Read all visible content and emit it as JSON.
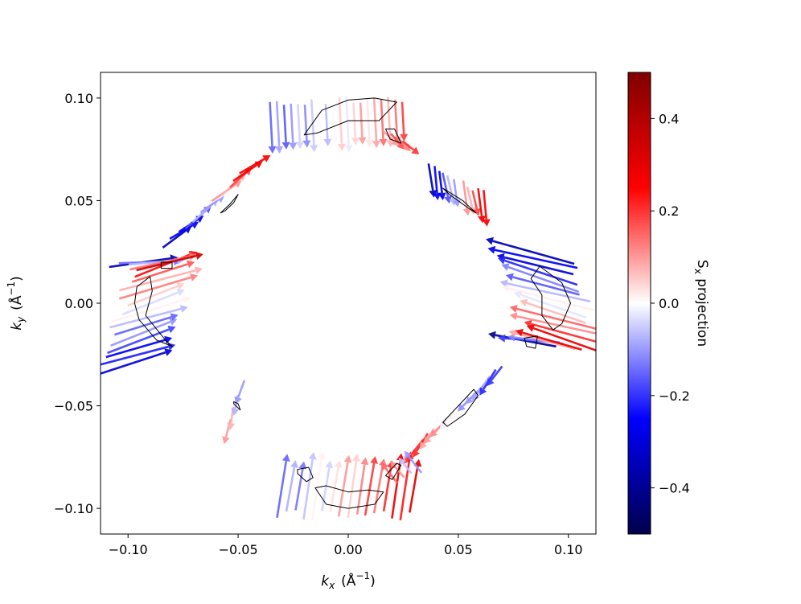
{
  "chart_data": {
    "type": "quiver",
    "title": "",
    "xlabel": {
      "symbol": "k",
      "sub": "x",
      "unit_pre": "(Å",
      "unit_sup": "−1",
      "unit_post": ")"
    },
    "ylabel": {
      "symbol": "k",
      "sub": "y",
      "unit_pre": "(Å",
      "unit_sup": "−1",
      "unit_post": ")"
    },
    "xlim": [
      -0.1125,
      0.1125
    ],
    "ylim": [
      -0.1125,
      0.1125
    ],
    "xticks": [
      -0.1,
      -0.05,
      0.0,
      0.05,
      0.1
    ],
    "xtick_labels": [
      "−0.10",
      "−0.05",
      "0.00",
      "0.05",
      "0.10"
    ],
    "yticks": [
      -0.1,
      -0.05,
      0.0,
      0.05,
      0.1
    ],
    "ytick_labels": [
      "−0.10",
      "−0.05",
      "0.00",
      "0.05",
      "0.10"
    ],
    "grid": false,
    "colorbar": {
      "label": {
        "main": "S",
        "sub": "x",
        "rest": " projection"
      },
      "range": [
        -0.5,
        0.5
      ],
      "ticks": [
        -0.4,
        -0.2,
        0.0,
        0.2,
        0.4
      ],
      "tick_labels": [
        "−0.4",
        "−0.2",
        "0.0",
        "0.2",
        "0.4"
      ],
      "colormap": "seismic",
      "colors": {
        "min": "#00004c",
        "low": "#0000ff",
        "mid": "#ffffff",
        "high": "#ff0000",
        "max": "#800000"
      }
    },
    "arrow_groups": [
      {
        "name": "top",
        "center": [
          -0.005,
          0.087
        ],
        "tangent": [
          1.0,
          0.05
        ],
        "direction": [
          0.05,
          -1.0
        ],
        "length": 0.024,
        "width": 0.06,
        "count": 20,
        "sx": [
          -0.15,
          0.15
        ]
      },
      {
        "name": "top-small",
        "center": [
          0.024,
          0.078
        ],
        "tangent": [
          1.0,
          -0.5
        ],
        "direction": [
          0.7,
          -0.7
        ],
        "length": 0.01,
        "width": 0.01,
        "count": 4,
        "sx": [
          0.1,
          0.2
        ]
      },
      {
        "name": "upper-right",
        "center": [
          0.05,
          0.053
        ],
        "tangent": [
          1.0,
          -0.55
        ],
        "direction": [
          0.15,
          -0.99
        ],
        "length": 0.016,
        "width": 0.028,
        "count": 12,
        "sx": [
          -0.35,
          0.3
        ]
      },
      {
        "name": "right",
        "center": [
          0.09,
          0.004
        ],
        "tangent": [
          0.35,
          -1.0
        ],
        "direction": [
          -1.0,
          0.3
        ],
        "length": 0.04,
        "width": 0.045,
        "count": 14,
        "sx": [
          -0.35,
          0.25
        ]
      },
      {
        "name": "right-lower",
        "center": [
          0.085,
          -0.018
        ],
        "tangent": [
          1.0,
          0.0
        ],
        "direction": [
          -1.0,
          0.2
        ],
        "length": 0.03,
        "width": 0.012,
        "count": 5,
        "sx": [
          -0.4,
          0.25
        ]
      },
      {
        "name": "lower-right",
        "center": [
          0.048,
          -0.054
        ],
        "tangent": [
          1.0,
          1.0
        ],
        "direction": [
          -0.6,
          -0.8
        ],
        "length": 0.014,
        "width": 0.052,
        "count": 13,
        "sx": [
          0.2,
          -0.2
        ]
      },
      {
        "name": "bottom",
        "center": [
          0.0,
          -0.089
        ],
        "tangent": [
          1.0,
          0.0
        ],
        "direction": [
          0.15,
          1.0
        ],
        "length": 0.03,
        "width": 0.06,
        "count": 16,
        "sx": [
          -0.15,
          0.3
        ]
      },
      {
        "name": "bottom-small",
        "center": [
          0.024,
          -0.08
        ],
        "tangent": [
          1.0,
          0.5
        ],
        "direction": [
          -0.6,
          0.8
        ],
        "length": 0.012,
        "width": 0.012,
        "count": 4,
        "sx": [
          0.15,
          -0.1
        ]
      },
      {
        "name": "left",
        "center": [
          -0.09,
          -0.005
        ],
        "tangent": [
          0.3,
          1.0
        ],
        "direction": [
          1.0,
          0.35
        ],
        "length": 0.035,
        "width": 0.05,
        "count": 14,
        "sx": [
          -0.3,
          0.2
        ]
      },
      {
        "name": "left-upper",
        "center": [
          -0.087,
          0.02
        ],
        "tangent": [
          1.0,
          0.0
        ],
        "direction": [
          1.0,
          0.15
        ],
        "length": 0.03,
        "width": 0.012,
        "count": 5,
        "sx": [
          -0.35,
          0.3
        ]
      },
      {
        "name": "upper-left",
        "center": [
          -0.06,
          0.05
        ],
        "tangent": [
          1.0,
          1.0
        ],
        "direction": [
          0.75,
          0.6
        ],
        "length": 0.016,
        "width": 0.05,
        "count": 12,
        "sx": [
          -0.35,
          0.3
        ]
      },
      {
        "name": "lower-left",
        "center": [
          -0.052,
          -0.053
        ],
        "tangent": [
          0.3,
          1.0
        ],
        "direction": [
          -0.25,
          -1.0
        ],
        "length": 0.012,
        "width": 0.02,
        "count": 4,
        "sx": [
          0.1,
          -0.1
        ]
      }
    ],
    "contours": [
      {
        "name": "top",
        "points": [
          [
            -0.02,
            0.082
          ],
          [
            -0.012,
            0.094
          ],
          [
            0.0,
            0.099
          ],
          [
            0.012,
            0.1
          ],
          [
            0.022,
            0.098
          ],
          [
            0.014,
            0.089
          ],
          [
            0.0,
            0.089
          ],
          [
            -0.014,
            0.083
          ],
          [
            -0.02,
            0.082
          ]
        ]
      },
      {
        "name": "top-small",
        "points": [
          [
            0.017,
            0.085
          ],
          [
            0.021,
            0.085
          ],
          [
            0.024,
            0.078
          ],
          [
            0.019,
            0.08
          ],
          [
            0.017,
            0.085
          ]
        ]
      },
      {
        "name": "upper-right",
        "points": [
          [
            0.043,
            0.056
          ],
          [
            0.052,
            0.05
          ],
          [
            0.058,
            0.044
          ],
          [
            0.055,
            0.046
          ],
          [
            0.046,
            0.053
          ],
          [
            0.043,
            0.056
          ]
        ]
      },
      {
        "name": "right",
        "points": [
          [
            0.087,
            0.018
          ],
          [
            0.097,
            0.01
          ],
          [
            0.101,
            0.0
          ],
          [
            0.097,
            -0.01
          ],
          [
            0.093,
            -0.013
          ],
          [
            0.088,
            -0.006
          ],
          [
            0.088,
            0.004
          ],
          [
            0.083,
            0.012
          ],
          [
            0.087,
            0.018
          ]
        ]
      },
      {
        "name": "right-small",
        "points": [
          [
            0.08,
            -0.017
          ],
          [
            0.086,
            -0.016
          ],
          [
            0.085,
            -0.022
          ],
          [
            0.081,
            -0.021
          ],
          [
            0.08,
            -0.017
          ]
        ]
      },
      {
        "name": "lower-right",
        "points": [
          [
            0.043,
            -0.058
          ],
          [
            0.05,
            -0.05
          ],
          [
            0.057,
            -0.042
          ],
          [
            0.059,
            -0.045
          ],
          [
            0.053,
            -0.054
          ],
          [
            0.045,
            -0.06
          ],
          [
            0.043,
            -0.058
          ]
        ]
      },
      {
        "name": "bottom",
        "points": [
          [
            -0.015,
            -0.09
          ],
          [
            -0.01,
            -0.098
          ],
          [
            0.0,
            -0.1
          ],
          [
            0.012,
            -0.098
          ],
          [
            0.016,
            -0.092
          ],
          [
            0.009,
            -0.091
          ],
          [
            0.0,
            -0.092
          ],
          [
            -0.01,
            -0.089
          ],
          [
            -0.015,
            -0.09
          ]
        ]
      },
      {
        "name": "bottom-small-left",
        "points": [
          [
            -0.023,
            -0.081
          ],
          [
            -0.018,
            -0.08
          ],
          [
            -0.016,
            -0.085
          ],
          [
            -0.019,
            -0.087
          ],
          [
            -0.023,
            -0.083
          ],
          [
            -0.023,
            -0.081
          ]
        ]
      },
      {
        "name": "bottom-small-right",
        "points": [
          [
            0.017,
            -0.084
          ],
          [
            0.022,
            -0.078
          ],
          [
            0.024,
            -0.079
          ],
          [
            0.02,
            -0.086
          ],
          [
            0.017,
            -0.084
          ]
        ]
      },
      {
        "name": "left",
        "points": [
          [
            -0.096,
            0.008
          ],
          [
            -0.09,
            0.013
          ],
          [
            -0.089,
            0.006
          ],
          [
            -0.092,
            -0.006
          ],
          [
            -0.083,
            -0.018
          ],
          [
            -0.08,
            -0.021
          ],
          [
            -0.087,
            -0.018
          ],
          [
            -0.095,
            -0.008
          ],
          [
            -0.097,
            0.0
          ],
          [
            -0.096,
            0.008
          ]
        ]
      },
      {
        "name": "left-small",
        "points": [
          [
            -0.085,
            0.02
          ],
          [
            -0.08,
            0.02
          ],
          [
            -0.08,
            0.017
          ],
          [
            -0.085,
            0.017
          ],
          [
            -0.085,
            0.02
          ]
        ]
      },
      {
        "name": "upper-left",
        "points": [
          [
            -0.058,
            0.044
          ],
          [
            -0.054,
            0.048
          ],
          [
            -0.05,
            0.053
          ],
          [
            -0.052,
            0.049
          ],
          [
            -0.056,
            0.045
          ],
          [
            -0.058,
            0.044
          ]
        ]
      },
      {
        "name": "lower-left",
        "points": [
          [
            -0.052,
            -0.049
          ],
          [
            -0.049,
            -0.052
          ],
          [
            -0.05,
            -0.049
          ],
          [
            -0.052,
            -0.048
          ],
          [
            -0.052,
            -0.049
          ]
        ]
      }
    ]
  }
}
